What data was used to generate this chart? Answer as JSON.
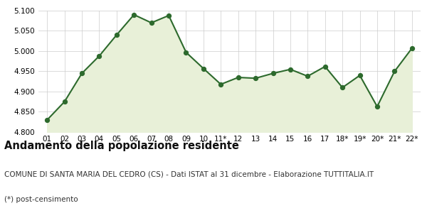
{
  "x_labels": [
    "01",
    "02",
    "03",
    "04",
    "05",
    "06",
    "07",
    "08",
    "09",
    "10",
    "11*",
    "12",
    "13",
    "14",
    "15",
    "16",
    "17",
    "18*",
    "19*",
    "20*",
    "21*",
    "22*"
  ],
  "y_values": [
    4830,
    4875,
    4945,
    4988,
    5040,
    5090,
    5070,
    5088,
    4997,
    4957,
    4918,
    4935,
    4933,
    4945,
    4955,
    4938,
    4962,
    4910,
    4940,
    4863,
    4950,
    5007
  ],
  "ylim": [
    4800,
    5100
  ],
  "yticks": [
    4800,
    4850,
    4900,
    4950,
    5000,
    5050,
    5100
  ],
  "line_color": "#2d6a2d",
  "fill_color": "#e8f0d8",
  "marker_color": "#2d6a2d",
  "bg_color": "#ffffff",
  "grid_color": "#cccccc",
  "title": "Andamento della popolazione residente",
  "subtitle": "COMUNE DI SANTA MARIA DEL CEDRO (CS) - Dati ISTAT al 31 dicembre - Elaborazione TUTTITALIA.IT",
  "footnote": "(*) post-censimento",
  "title_fontsize": 10.5,
  "subtitle_fontsize": 7.5,
  "footnote_fontsize": 7.5,
  "tick_fontsize": 7.5
}
